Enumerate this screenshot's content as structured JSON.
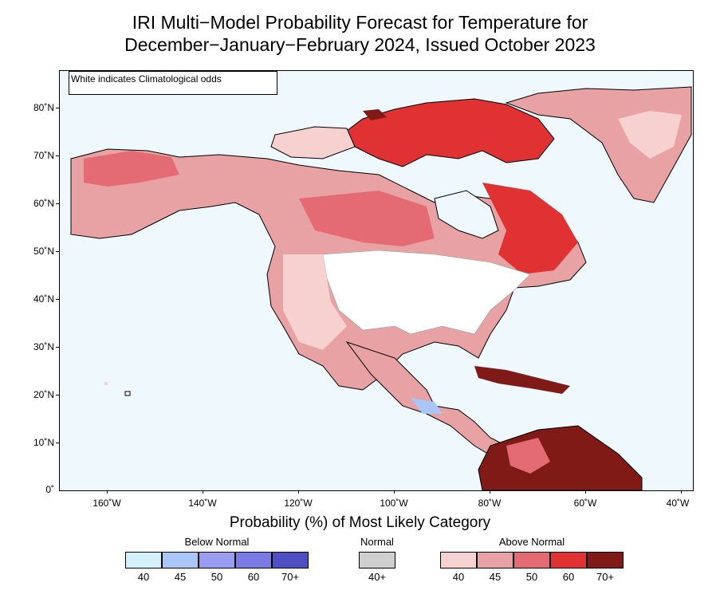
{
  "title_line1": "IRI Multi−Model Probability Forecast for Temperature for",
  "title_line2": "December−January−February 2024, Issued October 2023",
  "note": "White indicates Climatological odds",
  "lat_labels": [
    "80˚N",
    "70˚N",
    "60˚N",
    "50˚N",
    "40˚N",
    "30˚N",
    "20˚N",
    "10˚N",
    "0˚"
  ],
  "lon_labels": [
    "160˚W",
    "140˚W",
    "120˚W",
    "100˚W",
    "80˚W",
    "60˚W",
    "40˚W"
  ],
  "legend": {
    "title": "Probability (%) of Most Likely Category",
    "below": {
      "label": "Below Normal",
      "values": [
        "40",
        "45",
        "50",
        "60",
        "70+"
      ],
      "colors": [
        "#d4f0fb",
        "#aac6f6",
        "#9a9cf1",
        "#7b7be6",
        "#4f4fc4"
      ]
    },
    "normal": {
      "label": "Normal",
      "values": [
        "40+"
      ],
      "colors": [
        "#cfcfcf"
      ]
    },
    "above": {
      "label": "Above Normal",
      "values": [
        "40",
        "45",
        "50",
        "60",
        "70+"
      ],
      "colors": [
        "#f7d0d0",
        "#e8a2a4",
        "#e46b74",
        "#e03232",
        "#7f1a17"
      ]
    }
  },
  "colors": {
    "ocean": "#eef8fd",
    "land_outline": "#000000"
  }
}
